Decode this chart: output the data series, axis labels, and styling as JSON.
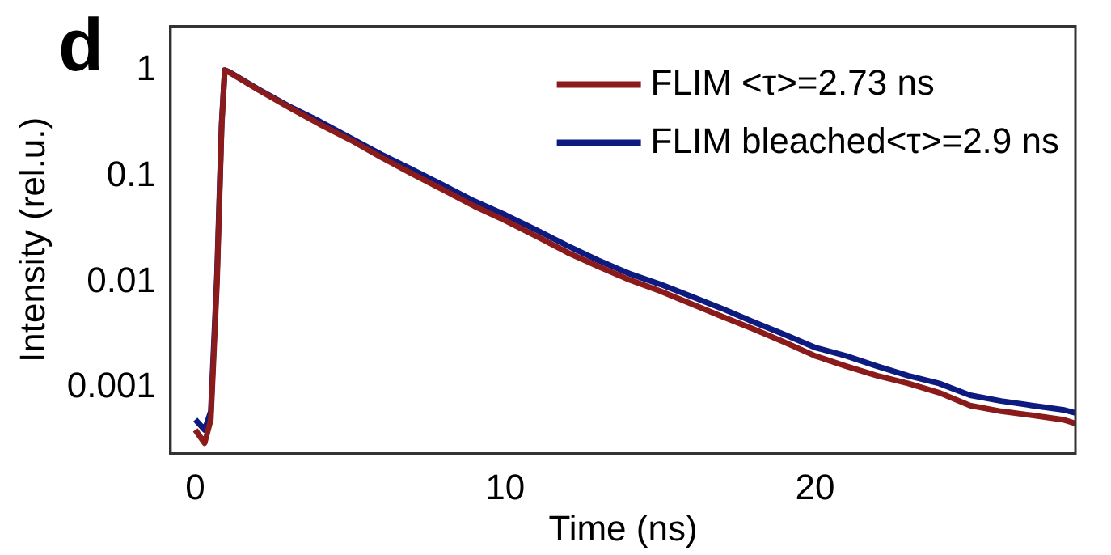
{
  "chart_data": {
    "type": "line",
    "xlabel": "Time (ns)",
    "ylabel": "Intensity (rel.u.)",
    "annotations": [
      "d"
    ],
    "x": [
      0,
      0.3,
      0.5,
      0.7,
      0.85,
      0.95,
      1.1,
      2,
      3,
      4,
      5,
      6,
      7,
      8,
      9,
      10,
      11,
      12,
      13,
      14,
      15,
      16,
      17,
      18,
      19,
      20,
      21,
      22,
      23,
      24,
      25,
      26,
      27,
      28,
      28.4
    ],
    "series": [
      {
        "name": "FLIM <τ>=2.73 ns",
        "color": "#8b1a1a",
        "values": [
          0.0004,
          0.0003,
          0.0005,
          0.01,
          0.3,
          1,
          0.95,
          0.66,
          0.45,
          0.31,
          0.22,
          0.15,
          0.105,
          0.074,
          0.052,
          0.038,
          0.027,
          0.019,
          0.014,
          0.0105,
          0.0082,
          0.0062,
          0.0047,
          0.0036,
          0.0027,
          0.002,
          0.0016,
          0.0013,
          0.0011,
          0.0009,
          0.00068,
          0.0006,
          0.00055,
          0.0005,
          0.00046
        ]
      },
      {
        "name": "FLIM bleached<τ>=2.9 ns",
        "color": "#0d1a80",
        "values": [
          0.0005,
          0.0004,
          0.0006,
          0.012,
          0.32,
          1,
          0.96,
          0.67,
          0.46,
          0.33,
          0.23,
          0.16,
          0.115,
          0.082,
          0.058,
          0.043,
          0.031,
          0.022,
          0.016,
          0.012,
          0.0095,
          0.0073,
          0.0056,
          0.0042,
          0.0032,
          0.0024,
          0.002,
          0.0016,
          0.0013,
          0.0011,
          0.00085,
          0.00075,
          0.00068,
          0.00062,
          0.00058
        ]
      }
    ],
    "xlim": [
      -0.8,
      28.4
    ],
    "xticks": [
      0,
      10,
      20
    ],
    "ylim": [
      0.00024,
      2.6
    ],
    "yticks": [
      0.001,
      0.01,
      0.1,
      1
    ],
    "log": "y",
    "grid": false,
    "legend": "top right",
    "marker": "none",
    "line_style": "solid"
  }
}
